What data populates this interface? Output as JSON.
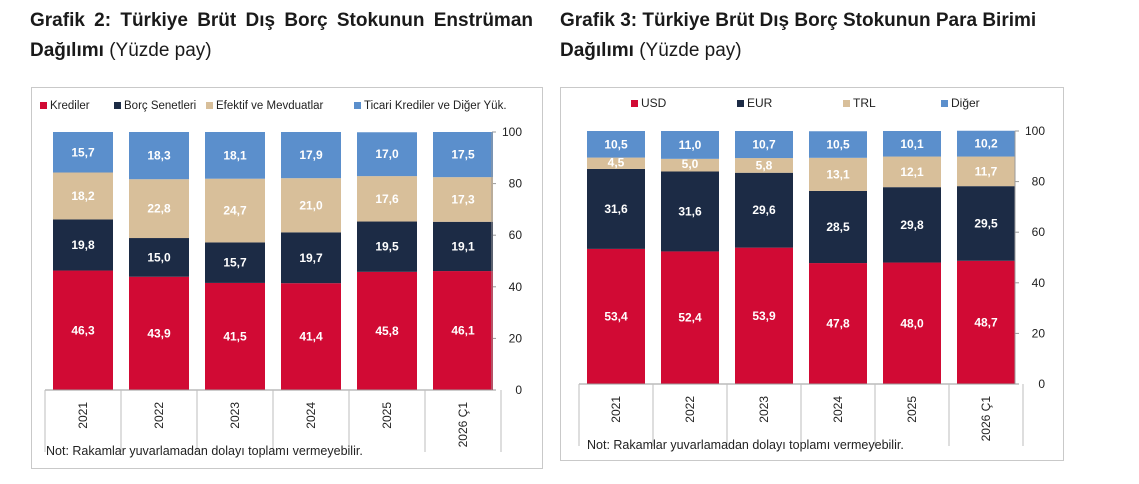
{
  "title_left": {
    "bold": "Grafik 2: Türkiye Brüt Dış Borç Stokunun Enstrüman Dağılımı",
    "suffix": "(Yüzde pay)"
  },
  "title_right": {
    "bold": "Grafik 3: Türkiye Brüt Dış Borç Stokunun Para Birimi Dağılımı",
    "suffix": "(Yüzde pay)"
  },
  "note_left": "Not: Rakamlar yuvarlamadan dolayı toplamı vermeyebilir.",
  "note_right": "Not: Rakamlar yuvarlamadan dolayı toplamı vermeyebilir.",
  "chart_data": [
    {
      "type": "bar",
      "stacked": true,
      "title": "Grafik 2: Türkiye Brüt Dış Borç Stokunun Enstrüman Dağılımı (Yüzde pay)",
      "categories": [
        "2021",
        "2022",
        "2023",
        "2024",
        "2025",
        "2026 Ç1"
      ],
      "ylim": [
        0,
        100
      ],
      "yticks": [
        "0",
        "20",
        "40",
        "60",
        "80",
        "100"
      ],
      "y_axis_side": "right",
      "legend_position": "top",
      "grid": false,
      "series": [
        {
          "name": "Krediler",
          "color": "#d10a34",
          "values": [
            46.3,
            43.9,
            41.5,
            41.4,
            45.8,
            46.1
          ],
          "labels": [
            "46,3",
            "43,9",
            "41,5",
            "41,4",
            "45,8",
            "46,1"
          ]
        },
        {
          "name": "Borç Senetleri",
          "color": "#1c2b45",
          "values": [
            19.8,
            15.0,
            15.7,
            19.7,
            19.5,
            19.1
          ],
          "labels": [
            "19,8",
            "15,0",
            "15,7",
            "19,7",
            "19,5",
            "19,1"
          ]
        },
        {
          "name": "Efektif ve Mevduatlar",
          "color": "#d8bf9a",
          "values": [
            18.2,
            22.8,
            24.7,
            21.0,
            17.6,
            17.3
          ],
          "labels": [
            "18,2",
            "22,8",
            "24,7",
            "21,0",
            "17,6",
            "17,3"
          ]
        },
        {
          "name": "Ticari Krediler ve Diğer Yük.",
          "color": "#5b8fcc",
          "values": [
            15.7,
            18.3,
            18.1,
            17.9,
            17.0,
            17.5
          ],
          "labels": [
            "15,7",
            "18,3",
            "18,1",
            "17,9",
            "17,0",
            "17,5"
          ]
        }
      ]
    },
    {
      "type": "bar",
      "stacked": true,
      "title": "Grafik 3: Türkiye Brüt Dış Borç Stokunun Para Birimi Dağılımı (Yüzde pay)",
      "categories": [
        "2021",
        "2022",
        "2023",
        "2024",
        "2025",
        "2026 Ç1"
      ],
      "ylim": [
        0,
        100
      ],
      "yticks": [
        "0",
        "20",
        "40",
        "60",
        "80",
        "100"
      ],
      "y_axis_side": "right",
      "legend_position": "top",
      "grid": false,
      "series": [
        {
          "name": "USD",
          "color": "#d10a34",
          "values": [
            53.4,
            52.4,
            53.9,
            47.8,
            48.0,
            48.7
          ],
          "labels": [
            "53,4",
            "52,4",
            "53,9",
            "47,8",
            "48,0",
            "48,7"
          ]
        },
        {
          "name": "EUR",
          "color": "#1c2b45",
          "values": [
            31.6,
            31.6,
            29.6,
            28.5,
            29.8,
            29.5
          ],
          "labels": [
            "31,6",
            "31,6",
            "29,6",
            "28,5",
            "29,8",
            "29,5"
          ]
        },
        {
          "name": "TRL",
          "color": "#d8bf9a",
          "values": [
            4.5,
            5.0,
            5.8,
            13.1,
            12.1,
            11.7
          ],
          "labels": [
            "4,5",
            "5,0",
            "5,8",
            "13,1",
            "12,1",
            "11,7"
          ]
        },
        {
          "name": "Diğer",
          "color": "#5b8fcc",
          "values": [
            10.5,
            11.0,
            10.7,
            10.5,
            10.1,
            10.2
          ],
          "labels": [
            "10,5",
            "11,0",
            "10,7",
            "10,5",
            "10,1",
            "10,2"
          ]
        }
      ]
    }
  ]
}
